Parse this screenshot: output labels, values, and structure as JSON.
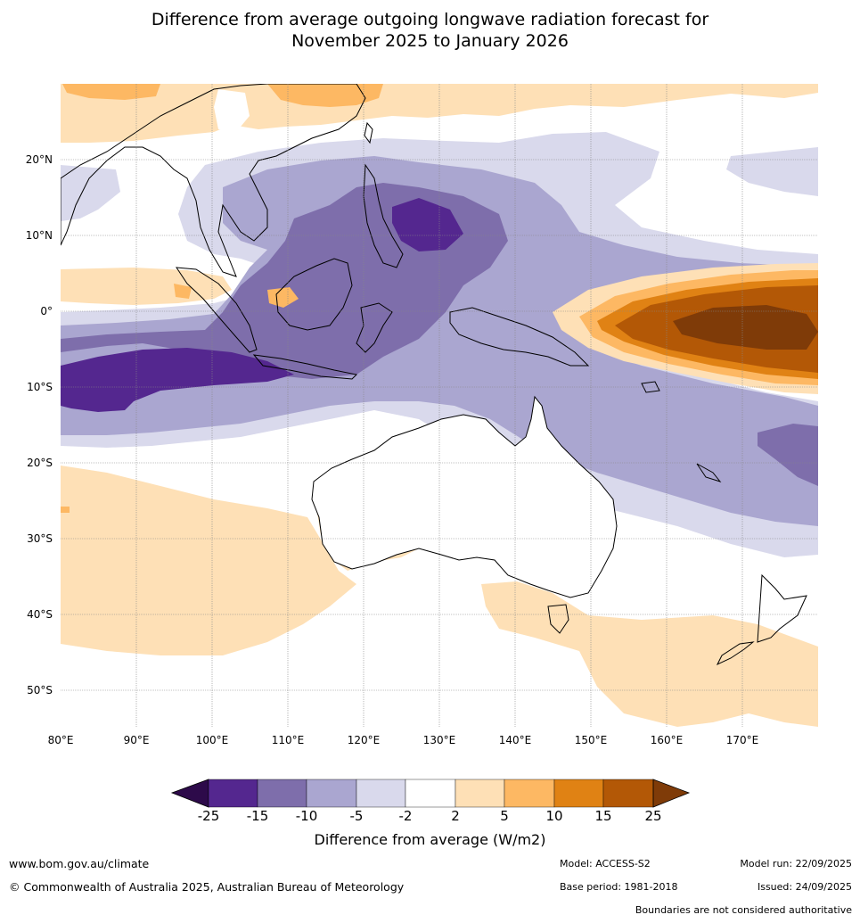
{
  "title": {
    "line1": "Difference from average outgoing longwave radiation forecast for",
    "line2": "November 2025 to January 2026"
  },
  "map": {
    "lon_range": [
      80,
      180
    ],
    "lat_range": [
      -55,
      30
    ],
    "lat_labels": [
      "20°N",
      "10°N",
      "0°",
      "10°S",
      "20°S",
      "30°S",
      "40°S",
      "50°S"
    ],
    "lon_labels": [
      "80°E",
      "90°E",
      "100°E",
      "110°E",
      "120°E",
      "130°E",
      "140°E",
      "150°E",
      "160°E",
      "170°E"
    ]
  },
  "colorbar": {
    "title": "Difference from average (W/m2)",
    "ticks": [
      "-25",
      "-15",
      "-10",
      "-5",
      "-2",
      "2",
      "5",
      "10",
      "15",
      "25"
    ],
    "colors": [
      "#2d0a4a",
      "#54278f",
      "#7e6eab",
      "#aaa6d0",
      "#d9d9ec",
      "#ffffff",
      "#fee0b6",
      "#fdb863",
      "#e08214",
      "#b35806",
      "#7f3b08"
    ]
  },
  "footer": {
    "website": "www.bom.gov.au/climate",
    "copyright": "© Commonwealth of Australia 2025, Australian Bureau of Meteorology",
    "model": "Model: ACCESS-S2",
    "base_period": "Base period: 1981-2018",
    "model_run": "Model run: 22/09/2025",
    "issued": "Issued: 24/09/2025",
    "disclaimer": "Boundaries are not considered authoritative"
  }
}
